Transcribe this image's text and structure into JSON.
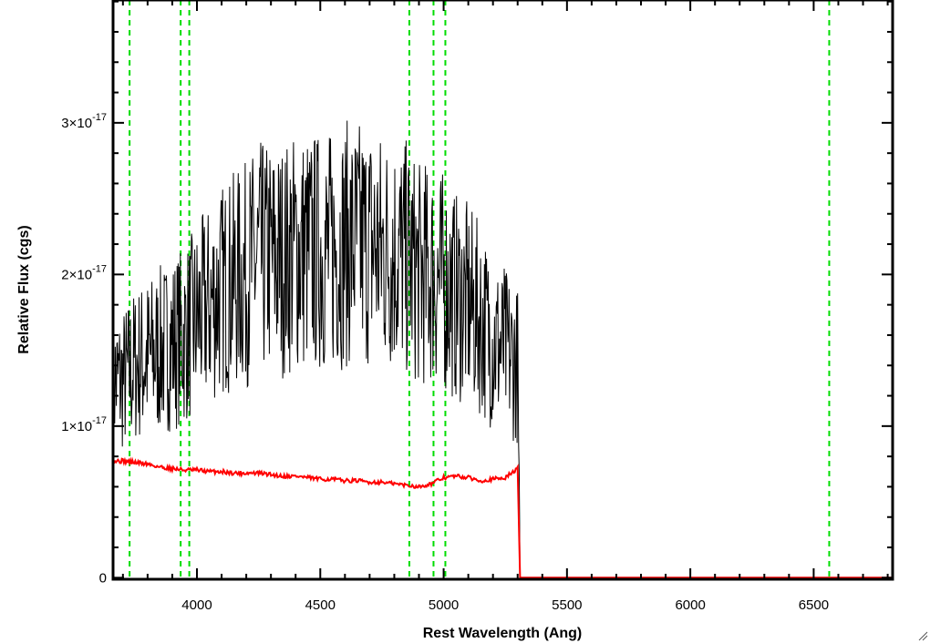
{
  "chart_data": {
    "type": "line",
    "title": "",
    "xlabel": "Rest Wavelength (Ang)",
    "ylabel": "Relative Flux (cgs)",
    "xlim": [
      3660,
      6820
    ],
    "ylim": [
      -1e-19,
      3.81e-17
    ],
    "x_ticks": [
      {
        "value": 4000,
        "label": "4000"
      },
      {
        "value": 4500,
        "label": "4500"
      },
      {
        "value": 5000,
        "label": "5000"
      },
      {
        "value": 5500,
        "label": "5500"
      },
      {
        "value": 6000,
        "label": "6000"
      },
      {
        "value": 6500,
        "label": "6500"
      }
    ],
    "y_ticks": [
      {
        "value": 0,
        "label": "0",
        "mantissa": "",
        "exponent": ""
      },
      {
        "value": 1e-17,
        "label": "1×10-17",
        "mantissa": "1×10",
        "exponent": "-17"
      },
      {
        "value": 2e-17,
        "label": "2×10-17",
        "mantissa": "2×10",
        "exponent": "-17"
      },
      {
        "value": 3e-17,
        "label": "3×10-17",
        "mantissa": "3×10",
        "exponent": "-17"
      }
    ],
    "grid": false,
    "vertical_reference_lines": {
      "color": "#00dd00",
      "style": "dashed",
      "x": [
        3727,
        3934,
        3969,
        4861,
        4959,
        5007,
        6563
      ]
    },
    "series": [
      {
        "color": "#000000",
        "style": "noisy spectrum",
        "x": [
          3660,
          3700,
          3750,
          3800,
          3850,
          3900,
          3950,
          4000,
          4050,
          4100,
          4150,
          4200,
          4250,
          4300,
          4350,
          4400,
          4450,
          4500,
          4550,
          4600,
          4650,
          4700,
          4750,
          4800,
          4850,
          4900,
          4950,
          5000,
          5050,
          5100,
          5150,
          5200,
          5250,
          5300,
          5310,
          5320,
          6820
        ],
        "y": [
          1.3e-17,
          1.3e-17,
          1.4e-17,
          1.45e-17,
          1.5e-17,
          1.55e-17,
          1.6e-17,
          1.7e-17,
          1.8e-17,
          1.9e-17,
          1.95e-17,
          2e-17,
          2.1e-17,
          2.1e-17,
          2.1e-17,
          2.15e-17,
          2.15e-17,
          2.15e-17,
          2.15e-17,
          2.2e-17,
          2.2e-17,
          2.2e-17,
          2.15e-17,
          2.15e-17,
          2.1e-17,
          2e-17,
          2e-17,
          1.95e-17,
          1.85e-17,
          1.8e-17,
          1.7e-17,
          1.55e-17,
          1.5e-17,
          1.4e-17,
          0,
          0,
          0
        ]
      },
      {
        "color": "#ff0000",
        "style": "model continuum",
        "x": [
          3660,
          3700,
          3750,
          3800,
          3850,
          3900,
          3950,
          4000,
          4050,
          4100,
          4150,
          4200,
          4250,
          4300,
          4350,
          4400,
          4450,
          4500,
          4550,
          4600,
          4650,
          4700,
          4750,
          4800,
          4850,
          4900,
          4950,
          5000,
          5050,
          5100,
          5150,
          5200,
          5250,
          5300,
          5310,
          5320,
          6820
        ],
        "y": [
          7.7e-18,
          7.7e-18,
          7.6e-18,
          7.5e-18,
          7.3e-18,
          7.2e-18,
          7.1e-18,
          7.1e-18,
          7e-18,
          7e-18,
          6.9e-18,
          6.9e-18,
          6.9e-18,
          6.8e-18,
          6.7e-18,
          6.7e-18,
          6.6e-18,
          6.5e-18,
          6.5e-18,
          6.4e-18,
          6.4e-18,
          6.3e-18,
          6.3e-18,
          6.2e-18,
          6.1e-18,
          6e-18,
          6.2e-18,
          6.6e-18,
          6.7e-18,
          6.6e-18,
          6.4e-18,
          6.5e-18,
          6.6e-18,
          7.2e-18,
          0,
          0,
          0
        ]
      }
    ]
  }
}
